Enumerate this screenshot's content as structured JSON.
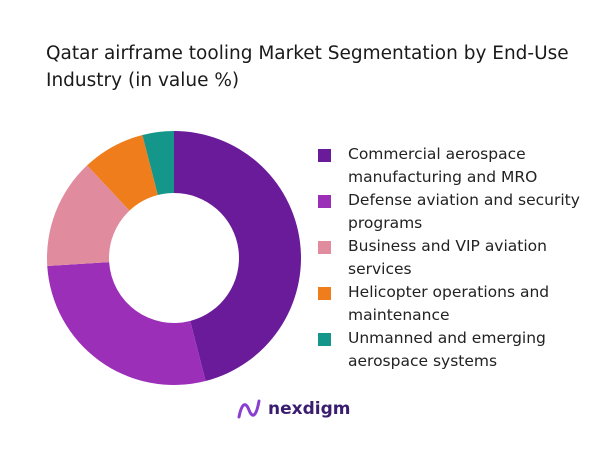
{
  "chart_data": {
    "type": "donut",
    "title": "Qatar airframe tooling Market Segmentation by End-Use Industry (in value %)",
    "categories": [
      "Commercial aerospace manufacturing and MRO",
      "Defense aviation and security programs",
      "Business and VIP aviation services",
      "Helicopter operations and maintenance",
      "Unmanned and emerging aerospace systems"
    ],
    "values": [
      46,
      28,
      14,
      8,
      4
    ],
    "colors": [
      "#6a1b9a",
      "#9c2fb8",
      "#e08b9e",
      "#f07d1c",
      "#15968a"
    ]
  },
  "brand": "nexdigm"
}
